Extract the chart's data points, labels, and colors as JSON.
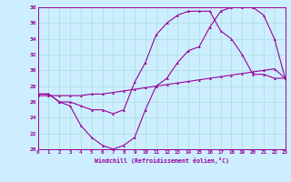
{
  "xlabel": "Windchill (Refroidissement éolien,°C)",
  "xlim": [
    0,
    23
  ],
  "ylim": [
    20,
    38
  ],
  "yticks": [
    20,
    22,
    24,
    26,
    28,
    30,
    32,
    34,
    36,
    38
  ],
  "xticks": [
    0,
    1,
    2,
    3,
    4,
    5,
    6,
    7,
    8,
    9,
    10,
    11,
    12,
    13,
    14,
    15,
    16,
    17,
    18,
    19,
    20,
    21,
    22,
    23
  ],
  "bg_color": "#cceeff",
  "line_color": "#990099",
  "grid_color": "#aadddd",
  "line1_y": [
    27.0,
    27.0,
    26.0,
    26.0,
    25.5,
    25.0,
    25.0,
    24.5,
    25.0,
    28.5,
    31.0,
    34.5,
    36.0,
    37.0,
    37.5,
    37.5,
    37.5,
    35.0,
    34.0,
    32.0,
    29.5,
    29.5,
    29.0,
    29.0
  ],
  "line2_y": [
    26.8,
    26.8,
    26.8,
    26.8,
    26.8,
    27.0,
    27.0,
    27.2,
    27.4,
    27.6,
    27.8,
    28.0,
    28.2,
    28.4,
    28.6,
    28.8,
    29.0,
    29.2,
    29.4,
    29.6,
    29.8,
    30.0,
    30.2,
    29.0
  ],
  "line3_y": [
    27.0,
    27.0,
    26.0,
    25.5,
    23.0,
    21.5,
    20.5,
    20.0,
    20.5,
    21.5,
    25.0,
    28.0,
    29.0,
    31.0,
    32.5,
    33.0,
    35.5,
    37.5,
    38.0,
    38.0,
    38.0,
    37.0,
    34.0,
    29.0
  ]
}
